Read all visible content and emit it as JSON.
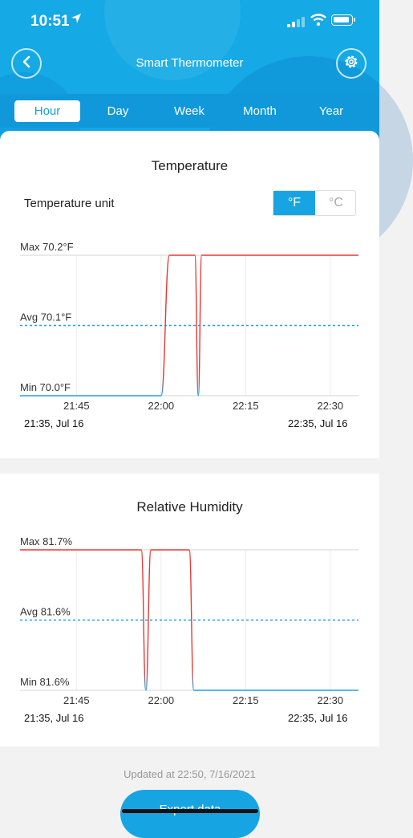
{
  "status_bar": {
    "time": "10:51",
    "location_icon": "location-arrow-icon"
  },
  "header": {
    "title": "Smart Thermometer",
    "back_icon": "chevron-left-icon",
    "settings_icon": "gear-icon"
  },
  "tabs": [
    "Hour",
    "Day",
    "Week",
    "Month",
    "Year"
  ],
  "active_tab": "Hour",
  "temperature": {
    "title": "Temperature",
    "unit_label": "Temperature unit",
    "unit_options": [
      "°F",
      "°C"
    ],
    "unit_selected": "°F",
    "range_start": "21:35,  Jul 16",
    "range_end": "22:35,  Jul 16"
  },
  "humidity": {
    "title": "Relative Humidity",
    "range_start": "21:35,  Jul 16",
    "range_end": "22:35,  Jul 16"
  },
  "footer": {
    "updated": "Updated at 22:50,  7/16/2021",
    "export_label": "Export data"
  },
  "colors": {
    "accent": "#17a4e3",
    "line": "#e53935",
    "avg": "#1fa3e0"
  },
  "chart_data": [
    {
      "type": "line",
      "title": "Temperature",
      "ylabel": "°F",
      "ylim": [
        70.0,
        70.2
      ],
      "x_ticks": [
        "21:45",
        "22:00",
        "22:15",
        "22:30"
      ],
      "y_labels": {
        "max": "Max 70.2°F",
        "avg": "Avg 70.1°F",
        "min": "Min 70.0°F"
      },
      "avg": 70.1,
      "series": [
        {
          "x": [
            0,
            25,
            26.5,
            30,
            31,
            31.6,
            32.2,
            33,
            60
          ],
          "y": [
            70.0,
            70.0,
            70.2,
            70.2,
            70.2,
            70.0,
            70.2,
            70.2,
            70.2
          ]
        }
      ]
    },
    {
      "type": "line",
      "title": "Relative Humidity",
      "ylabel": "%",
      "ylim": [
        81.6,
        81.7
      ],
      "x_ticks": [
        "21:45",
        "22:00",
        "22:15",
        "22:30"
      ],
      "y_labels": {
        "max": "Max 81.7%",
        "avg": "Avg 81.6%",
        "min": "Min 81.6%"
      },
      "avg": 81.65,
      "series": [
        {
          "x": [
            0,
            21.5,
            22.3,
            23.2,
            30,
            30.8,
            60
          ],
          "y": [
            81.7,
            81.7,
            81.6,
            81.7,
            81.7,
            81.6,
            81.6
          ]
        }
      ]
    }
  ]
}
